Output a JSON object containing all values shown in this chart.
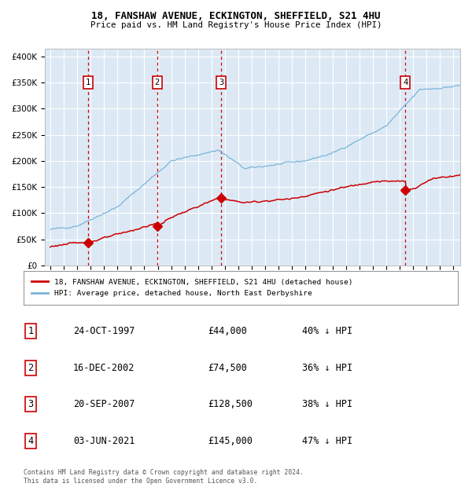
{
  "title1": "18, FANSHAW AVENUE, ECKINGTON, SHEFFIELD, S21 4HU",
  "title2": "Price paid vs. HM Land Registry's House Price Index (HPI)",
  "bg_color": "#dce9f5",
  "hpi_color": "#7ab4d8",
  "price_color": "#cc0000",
  "sale_dates": [
    1997.82,
    2002.96,
    2007.72,
    2021.42
  ],
  "sale_prices": [
    44000,
    74500,
    128500,
    145000
  ],
  "sale_labels": [
    "1",
    "2",
    "3",
    "4"
  ],
  "vline_color": "#cc0000",
  "yticks": [
    0,
    50000,
    100000,
    150000,
    200000,
    250000,
    300000,
    350000,
    400000
  ],
  "ylim": [
    0,
    415000
  ],
  "xlim_start": 1994.6,
  "xlim_end": 2025.5,
  "legend_line1": "18, FANSHAW AVENUE, ECKINGTON, SHEFFIELD, S21 4HU (detached house)",
  "legend_line2": "HPI: Average price, detached house, North East Derbyshire",
  "table_entries": [
    [
      "1",
      "24-OCT-1997",
      "£44,000",
      "40% ↓ HPI"
    ],
    [
      "2",
      "16-DEC-2002",
      "£74,500",
      "36% ↓ HPI"
    ],
    [
      "3",
      "20-SEP-2007",
      "£128,500",
      "38% ↓ HPI"
    ],
    [
      "4",
      "03-JUN-2021",
      "£145,000",
      "47% ↓ HPI"
    ]
  ],
  "footer": "Contains HM Land Registry data © Crown copyright and database right 2024.\nThis data is licensed under the Open Government Licence v3.0.",
  "grid_color": "#ffffff",
  "label_box_edge": "#cc0000"
}
